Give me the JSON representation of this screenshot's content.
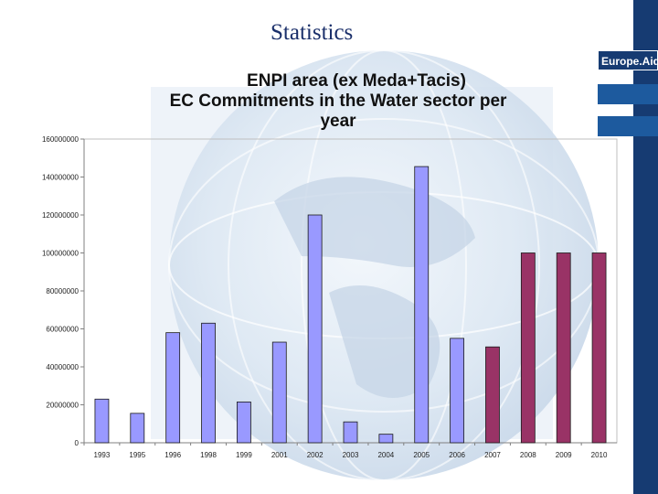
{
  "slide": {
    "title": "Statistics",
    "brand": "Europe.Aid",
    "colors": {
      "band": "#163b72",
      "accent": "#1d5a9e"
    }
  },
  "chart_data": {
    "type": "bar",
    "title": "ENPI area (ex Meda+Tacis)",
    "subtitle": "EC Commitments in the Water sector per year",
    "xlabel": "",
    "ylabel": "",
    "ylim": [
      0,
      160000000
    ],
    "yticks": [
      "0",
      "20000000",
      "40000000",
      "60000000",
      "80000000",
      "100000000",
      "120000000",
      "140000000",
      "160000000"
    ],
    "categories": [
      "1993",
      "1995",
      "1996",
      "1998",
      "1999",
      "2001",
      "2002",
      "2003",
      "2004",
      "2005",
      "2006",
      "2007",
      "2008",
      "2009",
      "2010"
    ],
    "values": [
      23000000,
      15500000,
      58000000,
      63000000,
      21500000,
      53000000,
      120000000,
      11000000,
      4500000,
      145500000,
      55000000,
      50500000,
      100000000,
      100000000,
      100000000
    ],
    "series_colors": [
      "#9999ff",
      "#9999ff",
      "#9999ff",
      "#9999ff",
      "#9999ff",
      "#9999ff",
      "#9999ff",
      "#9999ff",
      "#9999ff",
      "#9999ff",
      "#9999ff",
      "#993366",
      "#993366",
      "#993366",
      "#993366"
    ],
    "grid": false,
    "legend": "none"
  }
}
